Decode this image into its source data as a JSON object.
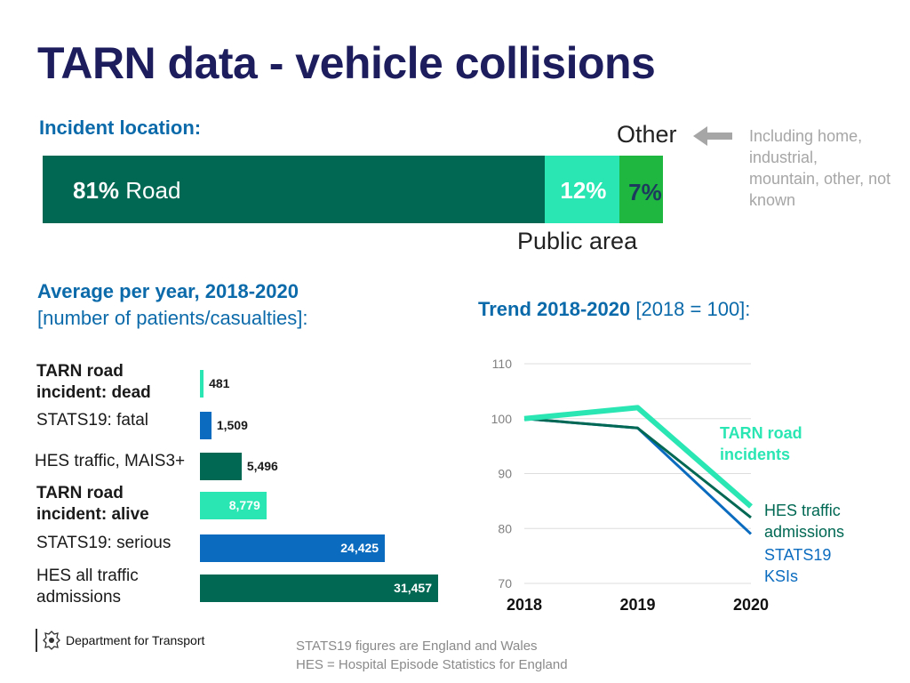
{
  "title": "TARN data - vehicle collisions",
  "location": {
    "heading": "Incident location:",
    "segments": [
      {
        "key": "road",
        "pct_text": "81%",
        "label": "Road",
        "value": 81,
        "color": "#006853"
      },
      {
        "key": "public",
        "pct_text": "12%",
        "label": "Public area",
        "value": 12,
        "color": "#29e6b3"
      },
      {
        "key": "other",
        "pct_text": "7%",
        "label": "Other",
        "value": 7,
        "color": "#1fb73f"
      }
    ],
    "other_title": "Other",
    "other_note": "Including home, industrial, mountain, other, not known",
    "public_title": "Public area"
  },
  "avg": {
    "heading": "Average per year, 2018-2020",
    "subheading": "[number of patients/casualties]:"
  },
  "trend": {
    "heading_bold": "Trend 2018-2020",
    "heading_rest": " [2018 = 100]:"
  },
  "chart_data": [
    {
      "type": "bar",
      "orientation": "horizontal",
      "title": "Average per year, 2018-2020 [number of patients/casualties]",
      "categories": [
        "TARN road incident: dead",
        "STATS19: fatal",
        "HES traffic, MAIS3+",
        "TARN road incident: alive",
        "STATS19: serious",
        "HES all traffic admissions"
      ],
      "labels": [
        [
          "TARN road",
          "incident: dead"
        ],
        [
          "STATS19: fatal"
        ],
        [
          "HES traffic, MAIS3+"
        ],
        [
          "TARN road",
          "incident: alive"
        ],
        [
          "STATS19: serious"
        ],
        [
          "HES all traffic",
          "admissions"
        ]
      ],
      "bold": [
        true,
        false,
        false,
        true,
        false,
        false
      ],
      "values": [
        481,
        1509,
        5496,
        8779,
        24425,
        31457
      ],
      "value_labels": [
        "481",
        "1,509",
        "5,496",
        "8,779",
        "24,425",
        "31,457"
      ],
      "colors": [
        "#29e6b3",
        "#0b6cbf",
        "#006853",
        "#29e6b3",
        "#0b6cbf",
        "#006853"
      ],
      "xlim": [
        0,
        31457
      ]
    },
    {
      "type": "line",
      "title": "Trend 2018-2020 [2018 = 100]",
      "x": [
        "2018",
        "2019",
        "2020"
      ],
      "ylim": [
        70,
        110
      ],
      "yticks": [
        70,
        80,
        90,
        100,
        110
      ],
      "grid": true,
      "series": [
        {
          "name": "TARN road incidents",
          "label_lines": [
            "TARN road",
            "incidents"
          ],
          "values": [
            100,
            102,
            84
          ],
          "color": "#29e6b3",
          "bold": true
        },
        {
          "name": "HES traffic admissions",
          "label_lines": [
            "HES traffic",
            "admissions"
          ],
          "values": [
            100,
            98.3,
            82
          ],
          "color": "#006853",
          "bold": false
        },
        {
          "name": "STATS19 KSIs",
          "label_lines": [
            "STATS19",
            "KSIs"
          ],
          "values": [
            100,
            98.3,
            79
          ],
          "color": "#0b6cbf",
          "bold": false
        }
      ]
    }
  ],
  "footer": {
    "logo_text": "Department for Transport",
    "note_line1": "STATS19 figures are England and Wales",
    "note_line2": "HES = Hospital Episode Statistics for England"
  }
}
